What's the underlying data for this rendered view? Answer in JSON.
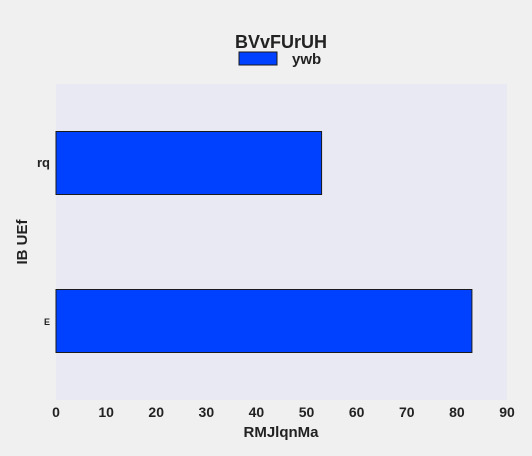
{
  "chart_data": {
    "type": "bar",
    "orientation": "horizontal",
    "title": "BVvFUrUH",
    "xlabel": "RMJlqnMa",
    "ylabel": "IB UEf",
    "categories": [
      "rq",
      "E"
    ],
    "series": [
      {
        "name": "ywb",
        "values": [
          53,
          83
        ]
      }
    ],
    "xlim": [
      0,
      90
    ],
    "xticks": [
      0,
      10,
      20,
      30,
      40,
      50,
      60,
      70,
      80,
      90
    ],
    "grid": false,
    "legend_placement": "top-center",
    "colors": {
      "bar": "#0040ff",
      "bar_edge": "#1a1a1a",
      "plot_bg": "#e9e9f3",
      "figure_bg": "#f0f0f0"
    }
  }
}
